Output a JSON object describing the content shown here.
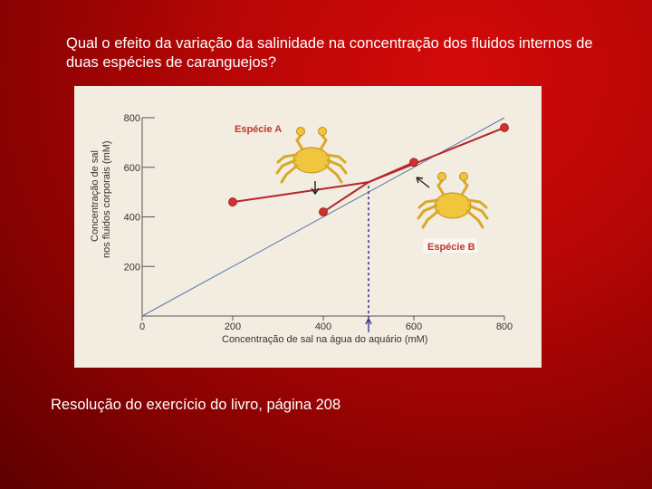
{
  "slide": {
    "question": "Qual o efeito da variação da salinidade na concentração dos fluidos internos de duas espécies de caranguejos?",
    "caption": "Resolução do exercício do livro, página 208"
  },
  "colors": {
    "series": "#b3262b",
    "diagonal": "#5878a8",
    "axis": "#555555",
    "crab": "#f1c63c",
    "label_bg": "#ffffff"
  },
  "chart_data": {
    "type": "line",
    "xlabel": "Concentração de sal na água do aquário (mM)",
    "ylabel": [
      "Concentração de sal",
      "nos fluidos corporais (mM)"
    ],
    "xlim": [
      0,
      800
    ],
    "ylim": [
      0,
      800
    ],
    "x_ticks": [
      0,
      200,
      400,
      600,
      800
    ],
    "y_ticks": [
      200,
      400,
      600,
      800
    ],
    "grid": false,
    "reference_line": {
      "style": "isosmotic diagonal y = x",
      "points": [
        [
          0,
          0
        ],
        [
          800,
          800
        ]
      ]
    },
    "marker_x": 500,
    "series": [
      {
        "name": "Espécie A",
        "points": [
          [
            200,
            460
          ],
          [
            500,
            540
          ],
          [
            800,
            760
          ]
        ],
        "markers": [
          [
            200,
            460
          ],
          [
            800,
            760
          ]
        ]
      },
      {
        "name": "Espécie B",
        "points": [
          [
            400,
            420
          ],
          [
            500,
            540
          ],
          [
            600,
            620
          ]
        ],
        "markers": [
          [
            400,
            420
          ],
          [
            600,
            620
          ]
        ]
      }
    ]
  }
}
